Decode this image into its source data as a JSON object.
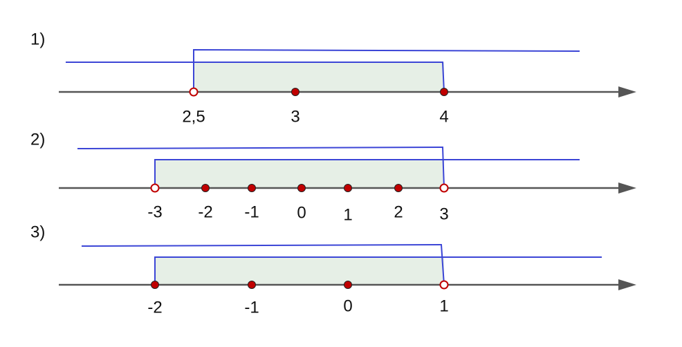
{
  "problems": [
    {
      "label": "1)",
      "points": [
        {
          "label": "2,5",
          "filled": false
        },
        {
          "label": "3",
          "filled": true
        },
        {
          "label": "4",
          "filled": true
        }
      ]
    },
    {
      "label": "2)",
      "points": [
        {
          "label": "-3",
          "filled": false
        },
        {
          "label": "-2",
          "filled": true
        },
        {
          "label": "-1",
          "filled": true
        },
        {
          "label": "0",
          "filled": true
        },
        {
          "label": "1",
          "filled": true
        },
        {
          "label": "2",
          "filled": true
        },
        {
          "label": "3",
          "filled": false
        }
      ]
    },
    {
      "label": "3)",
      "points": [
        {
          "label": "-2",
          "filled": true
        },
        {
          "label": "-1",
          "filled": true
        },
        {
          "label": "0",
          "filled": true
        },
        {
          "label": "1",
          "filled": false
        }
      ]
    }
  ]
}
